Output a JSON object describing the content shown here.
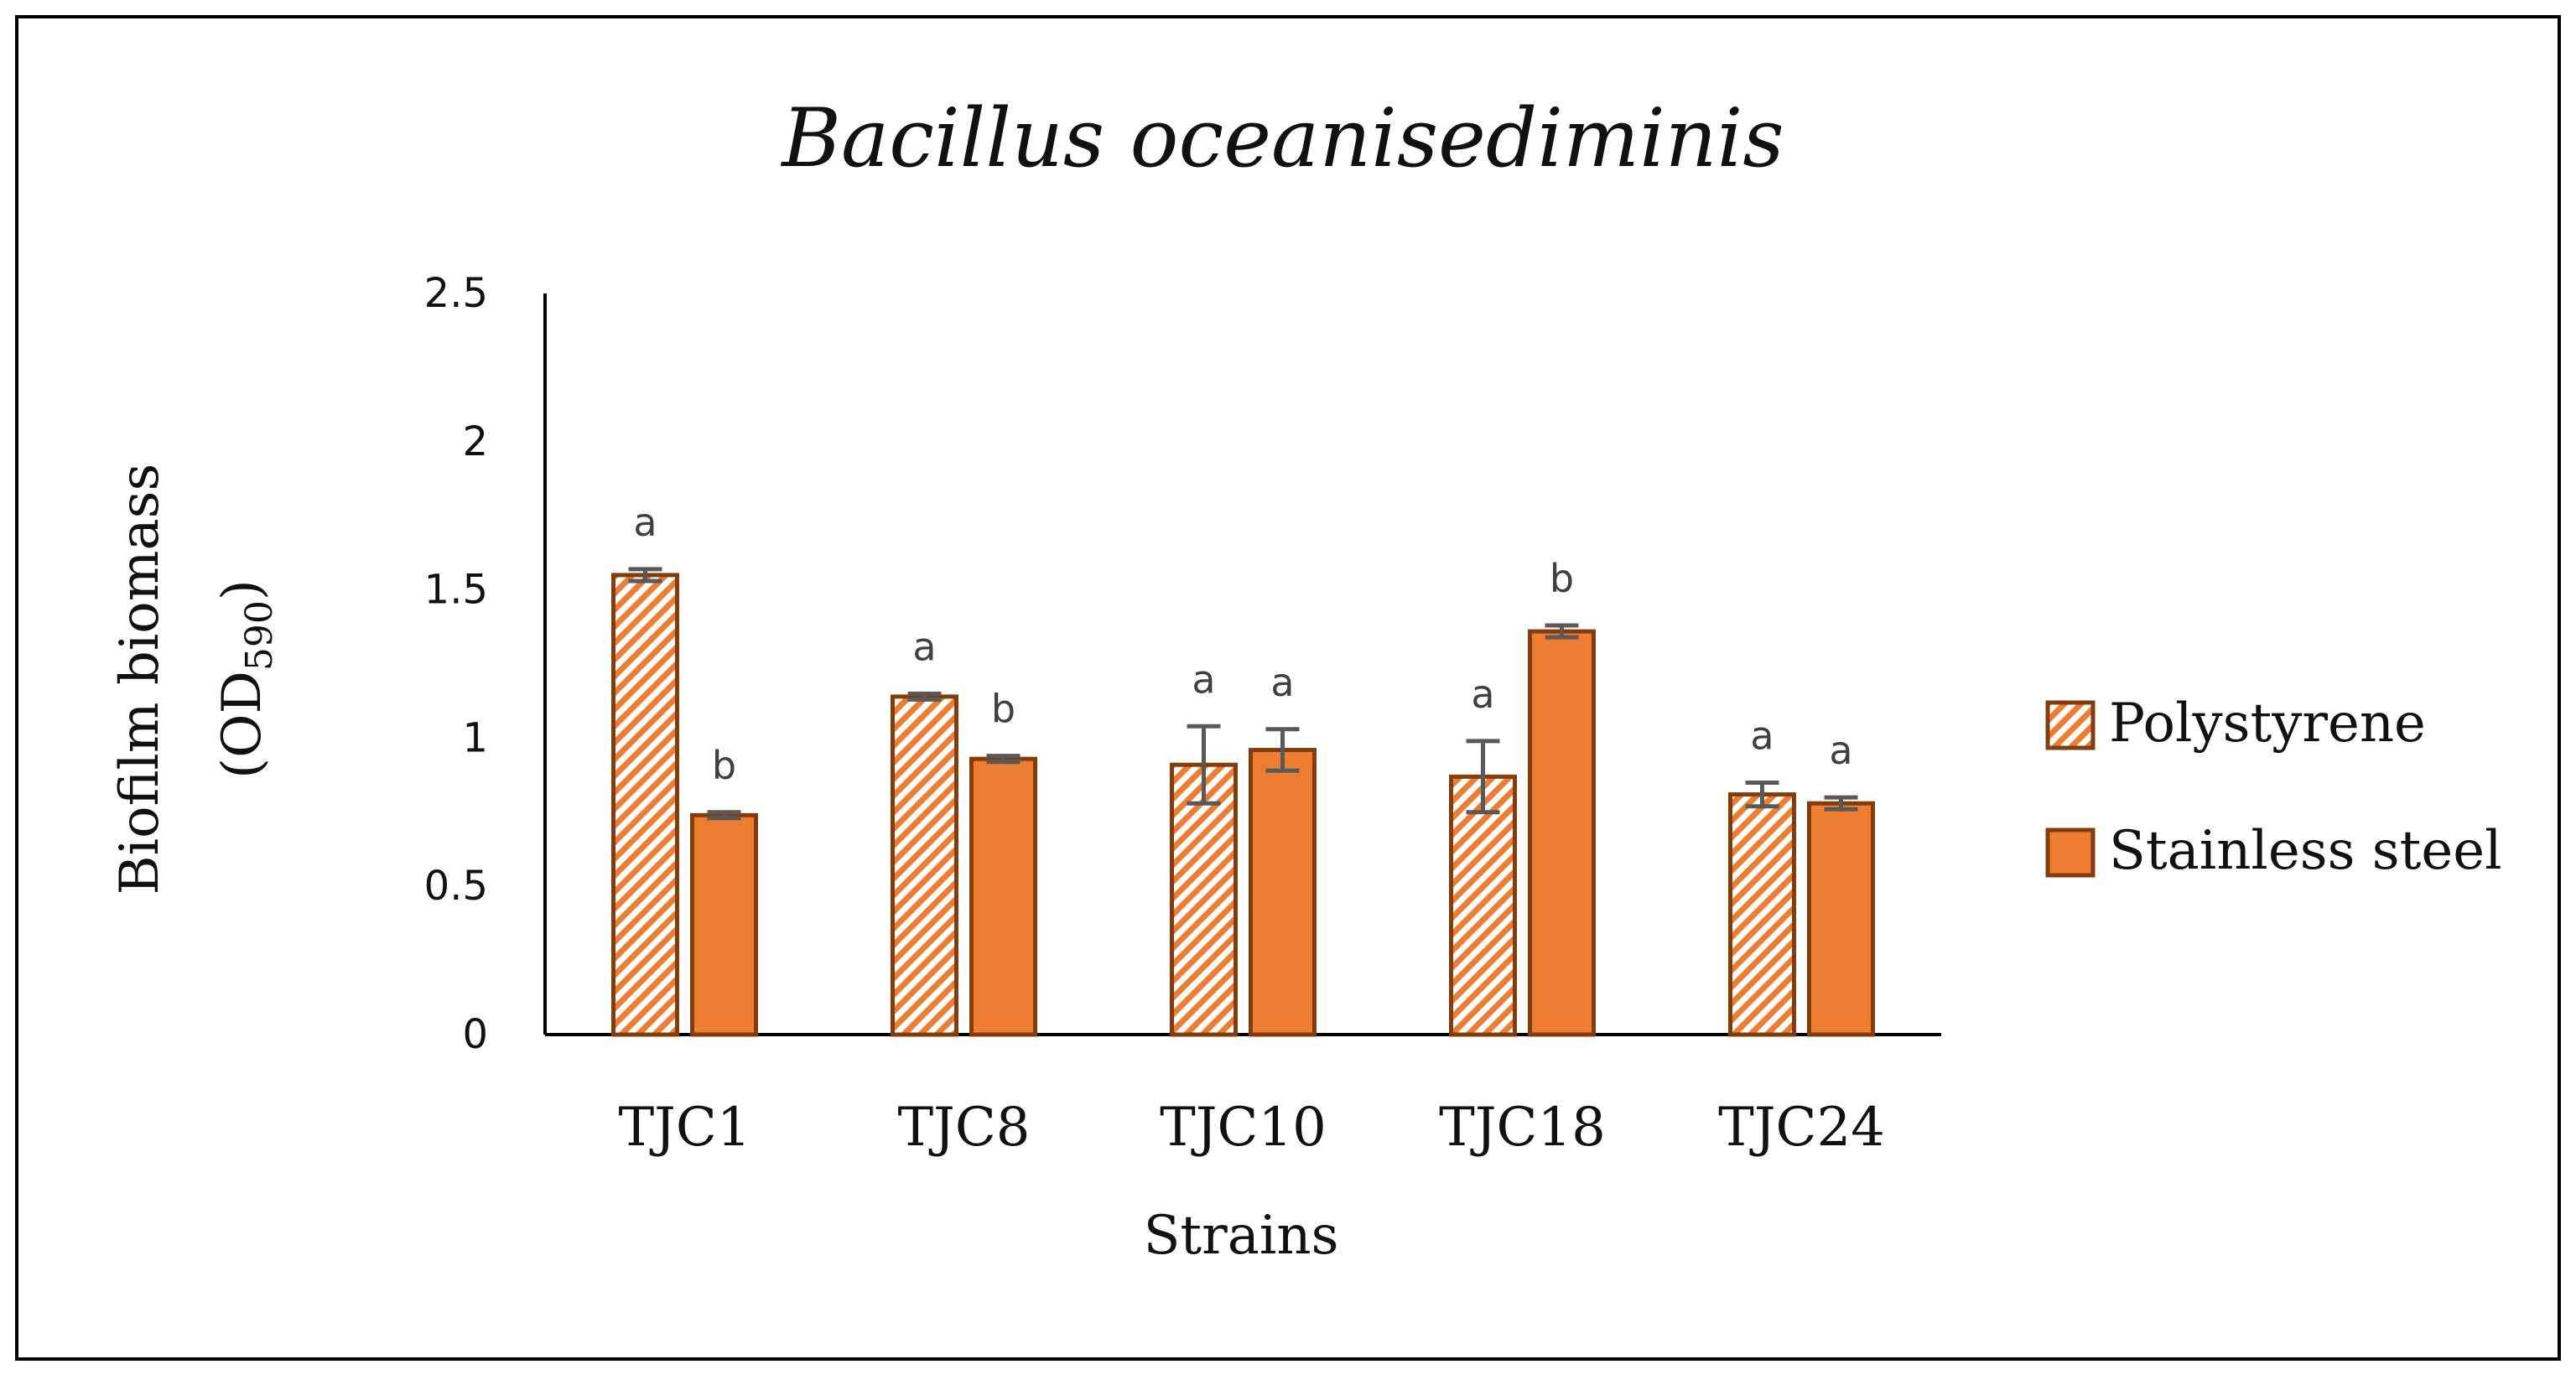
{
  "chart_data": {
    "type": "bar",
    "title": "Bacillus oceanisediminis",
    "xlabel": "Strains",
    "ylabel_line1": "Biofilm biomass",
    "ylabel_line2_prefix": "(OD",
    "ylabel_line2_sub": "590",
    "ylabel_line2_suffix": ")",
    "ylim": [
      0,
      2.5
    ],
    "yticks": [
      "0",
      "0.5",
      "1",
      "1.5",
      "2",
      "2.5"
    ],
    "ytick_values": [
      0,
      0.5,
      1,
      1.5,
      2,
      2.5
    ],
    "grid": false,
    "legend_position": "right",
    "categories": [
      "TJC1",
      "TJC8",
      "TJC10",
      "TJC18",
      "TJC24"
    ],
    "series": [
      {
        "name": "Polystyrene",
        "pattern": "diagonal-hatch",
        "values": [
          1.55,
          1.14,
          0.91,
          0.87,
          0.81
        ],
        "errors": [
          0.02,
          0.01,
          0.13,
          0.12,
          0.04
        ],
        "labels": [
          "a",
          "a",
          "a",
          "a",
          "a"
        ]
      },
      {
        "name": "Stainless steel",
        "pattern": "solid",
        "values": [
          0.74,
          0.93,
          0.96,
          1.36,
          0.78
        ],
        "errors": [
          0.01,
          0.01,
          0.07,
          0.02,
          0.02
        ],
        "labels": [
          "b",
          "b",
          "a",
          "b",
          "a"
        ]
      }
    ],
    "colors": {
      "bar_fill": "#ED7D31",
      "bar_stroke": "#843C0C",
      "hatch_light": "#FFFFFF",
      "error_bar": "#595959",
      "axis": "#000000",
      "frame": "#000000"
    }
  }
}
